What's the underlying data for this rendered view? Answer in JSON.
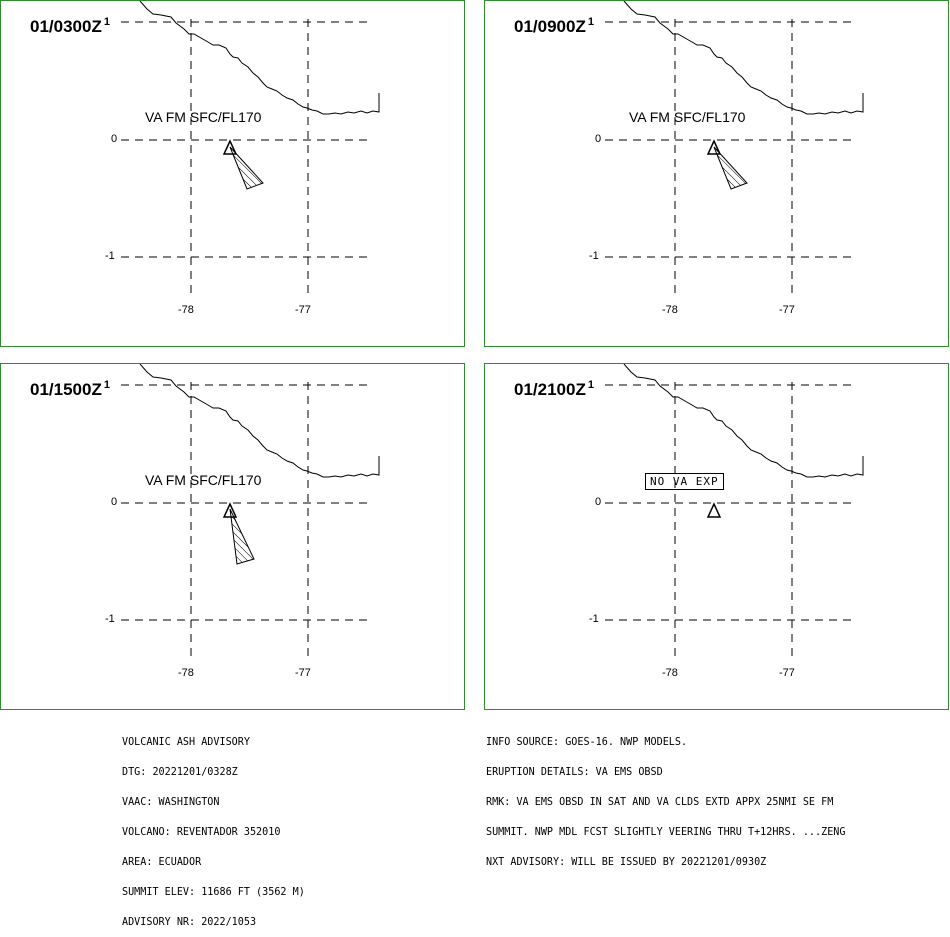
{
  "panels": [
    {
      "title": "01/0300Z",
      "sup": "1",
      "label": "VA FM SFC/FL170",
      "no_va": false,
      "plume": "short"
    },
    {
      "title": "01/0900Z",
      "sup": "1",
      "label": "VA FM SFC/FL170",
      "no_va": false,
      "plume": "short"
    },
    {
      "title": "01/1500Z",
      "sup": "1",
      "label": "VA FM SFC/FL170",
      "no_va": false,
      "plume": "long"
    },
    {
      "title": "01/2100Z",
      "sup": "1",
      "label": "NO VA EXP",
      "no_va": true,
      "plume": "none"
    }
  ],
  "axis": {
    "lat_labels": [
      "0",
      "-1"
    ],
    "lon_labels": [
      "-78",
      "-77"
    ]
  },
  "advisory_left": [
    "VOLCANIC ASH ADVISORY",
    "DTG: 20221201/0328Z",
    "VAAC: WASHINGTON",
    "VOLCANO: REVENTADOR 352010",
    "AREA: ECUADOR",
    "SUMMIT ELEV: 11686 FT (3562 M)",
    "ADVISORY NR: 2022/1053"
  ],
  "advisory_right": [
    "INFO SOURCE: GOES-16. NWP MODELS.",
    "ERUPTION DETAILS: VA EMS OBSD",
    "RMK: VA EMS OBSD IN SAT AND VA CLDS EXTD APPX 25NMI SE FM",
    "SUMMIT. NWP MDL FCST SLIGHTLY VEERING THRU T+12HRS. ...ZENG",
    "NXT ADVISORY: WILL BE ISSUED BY 20221201/0930Z"
  ],
  "colors": {
    "border": "#2e8b2e",
    "line": "#000000"
  }
}
